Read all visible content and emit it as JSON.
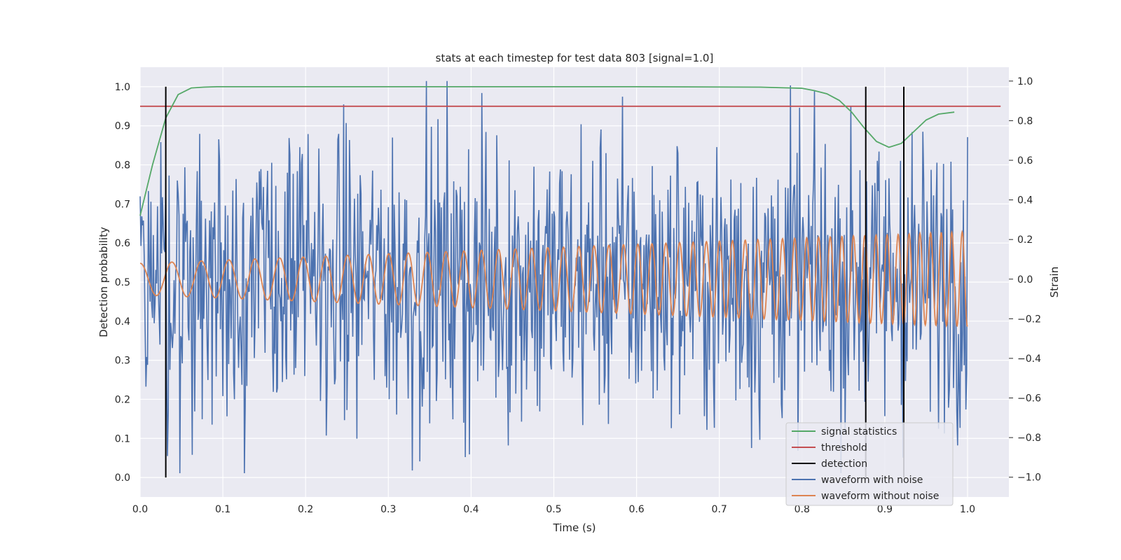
{
  "chart_data": {
    "type": "line",
    "title": "stats at each timestep for test data 803 [signal=1.0]",
    "xlabel": "Time (s)",
    "ylabel_left": "Detection probability",
    "ylabel_right": "Strain",
    "xlim": [
      0.0,
      1.05
    ],
    "ylim_left": [
      -0.05,
      1.05
    ],
    "ylim_right": [
      -1.1,
      1.07
    ],
    "x_ticks": [
      "0.0",
      "0.1",
      "0.2",
      "0.3",
      "0.4",
      "0.5",
      "0.6",
      "0.7",
      "0.8",
      "0.9",
      "1.0"
    ],
    "y_left_ticks": [
      "0.0",
      "0.1",
      "0.2",
      "0.3",
      "0.4",
      "0.5",
      "0.6",
      "0.7",
      "0.8",
      "0.9",
      "1.0"
    ],
    "y_right_ticks": [
      "−1.0",
      "−0.8",
      "−0.6",
      "−0.4",
      "−0.2",
      "0.0",
      "0.2",
      "0.4",
      "0.6",
      "0.8",
      "1.0"
    ],
    "grid": true,
    "legend_position": "lower-right",
    "colors": {
      "signal_statistics": "#55a868",
      "threshold": "#c44e52",
      "detection": "#000000",
      "waveform_with_noise": "#4c72b0",
      "waveform_without_noise": "#dd8452",
      "plot_background": "#eaeaf2",
      "grid": "#ffffff"
    },
    "series": [
      {
        "name": "signal statistics",
        "axis": "left",
        "x": [
          0.0,
          0.015,
          0.031,
          0.046,
          0.062,
          0.077,
          0.093,
          0.2,
          0.4,
          0.6,
          0.75,
          0.8,
          0.815,
          0.83,
          0.845,
          0.86,
          0.875,
          0.89,
          0.905,
          0.92,
          0.935,
          0.95,
          0.965,
          0.984
        ],
        "y": [
          0.67,
          0.8,
          0.92,
          0.98,
          0.997,
          0.999,
          1.0,
          1.0,
          1.0,
          1.0,
          0.999,
          0.996,
          0.99,
          0.982,
          0.965,
          0.935,
          0.895,
          0.86,
          0.845,
          0.855,
          0.885,
          0.915,
          0.93,
          0.935
        ]
      },
      {
        "name": "threshold",
        "axis": "left",
        "x": [
          0.0,
          1.04
        ],
        "y": [
          0.95,
          0.95
        ]
      },
      {
        "name": "detection",
        "axis": "left",
        "x": [
          0.031,
          0.877,
          0.923
        ],
        "y_range": [
          0.0,
          1.0
        ]
      },
      {
        "name": "waveform with noise",
        "axis": "right",
        "note_style": "noisy strain trace, roughly between -1.0 and 1.0",
        "x_range": [
          0.0,
          1.0
        ],
        "y_min": -0.98,
        "y_max": 1.0
      },
      {
        "name": "waveform without noise",
        "axis": "right",
        "x_range": [
          0.0,
          1.0
        ],
        "amplitude_start": 0.08,
        "amplitude_end": 0.24,
        "frequency_start_hz": 25,
        "frequency_end_hz": 80
      }
    ]
  },
  "legend": {
    "items": [
      {
        "label": "signal statistics",
        "color": "#55a868"
      },
      {
        "label": "threshold",
        "color": "#c44e52"
      },
      {
        "label": "detection",
        "color": "#000000"
      },
      {
        "label": "waveform with noise",
        "color": "#4c72b0"
      },
      {
        "label": "waveform without noise",
        "color": "#dd8452"
      }
    ]
  }
}
